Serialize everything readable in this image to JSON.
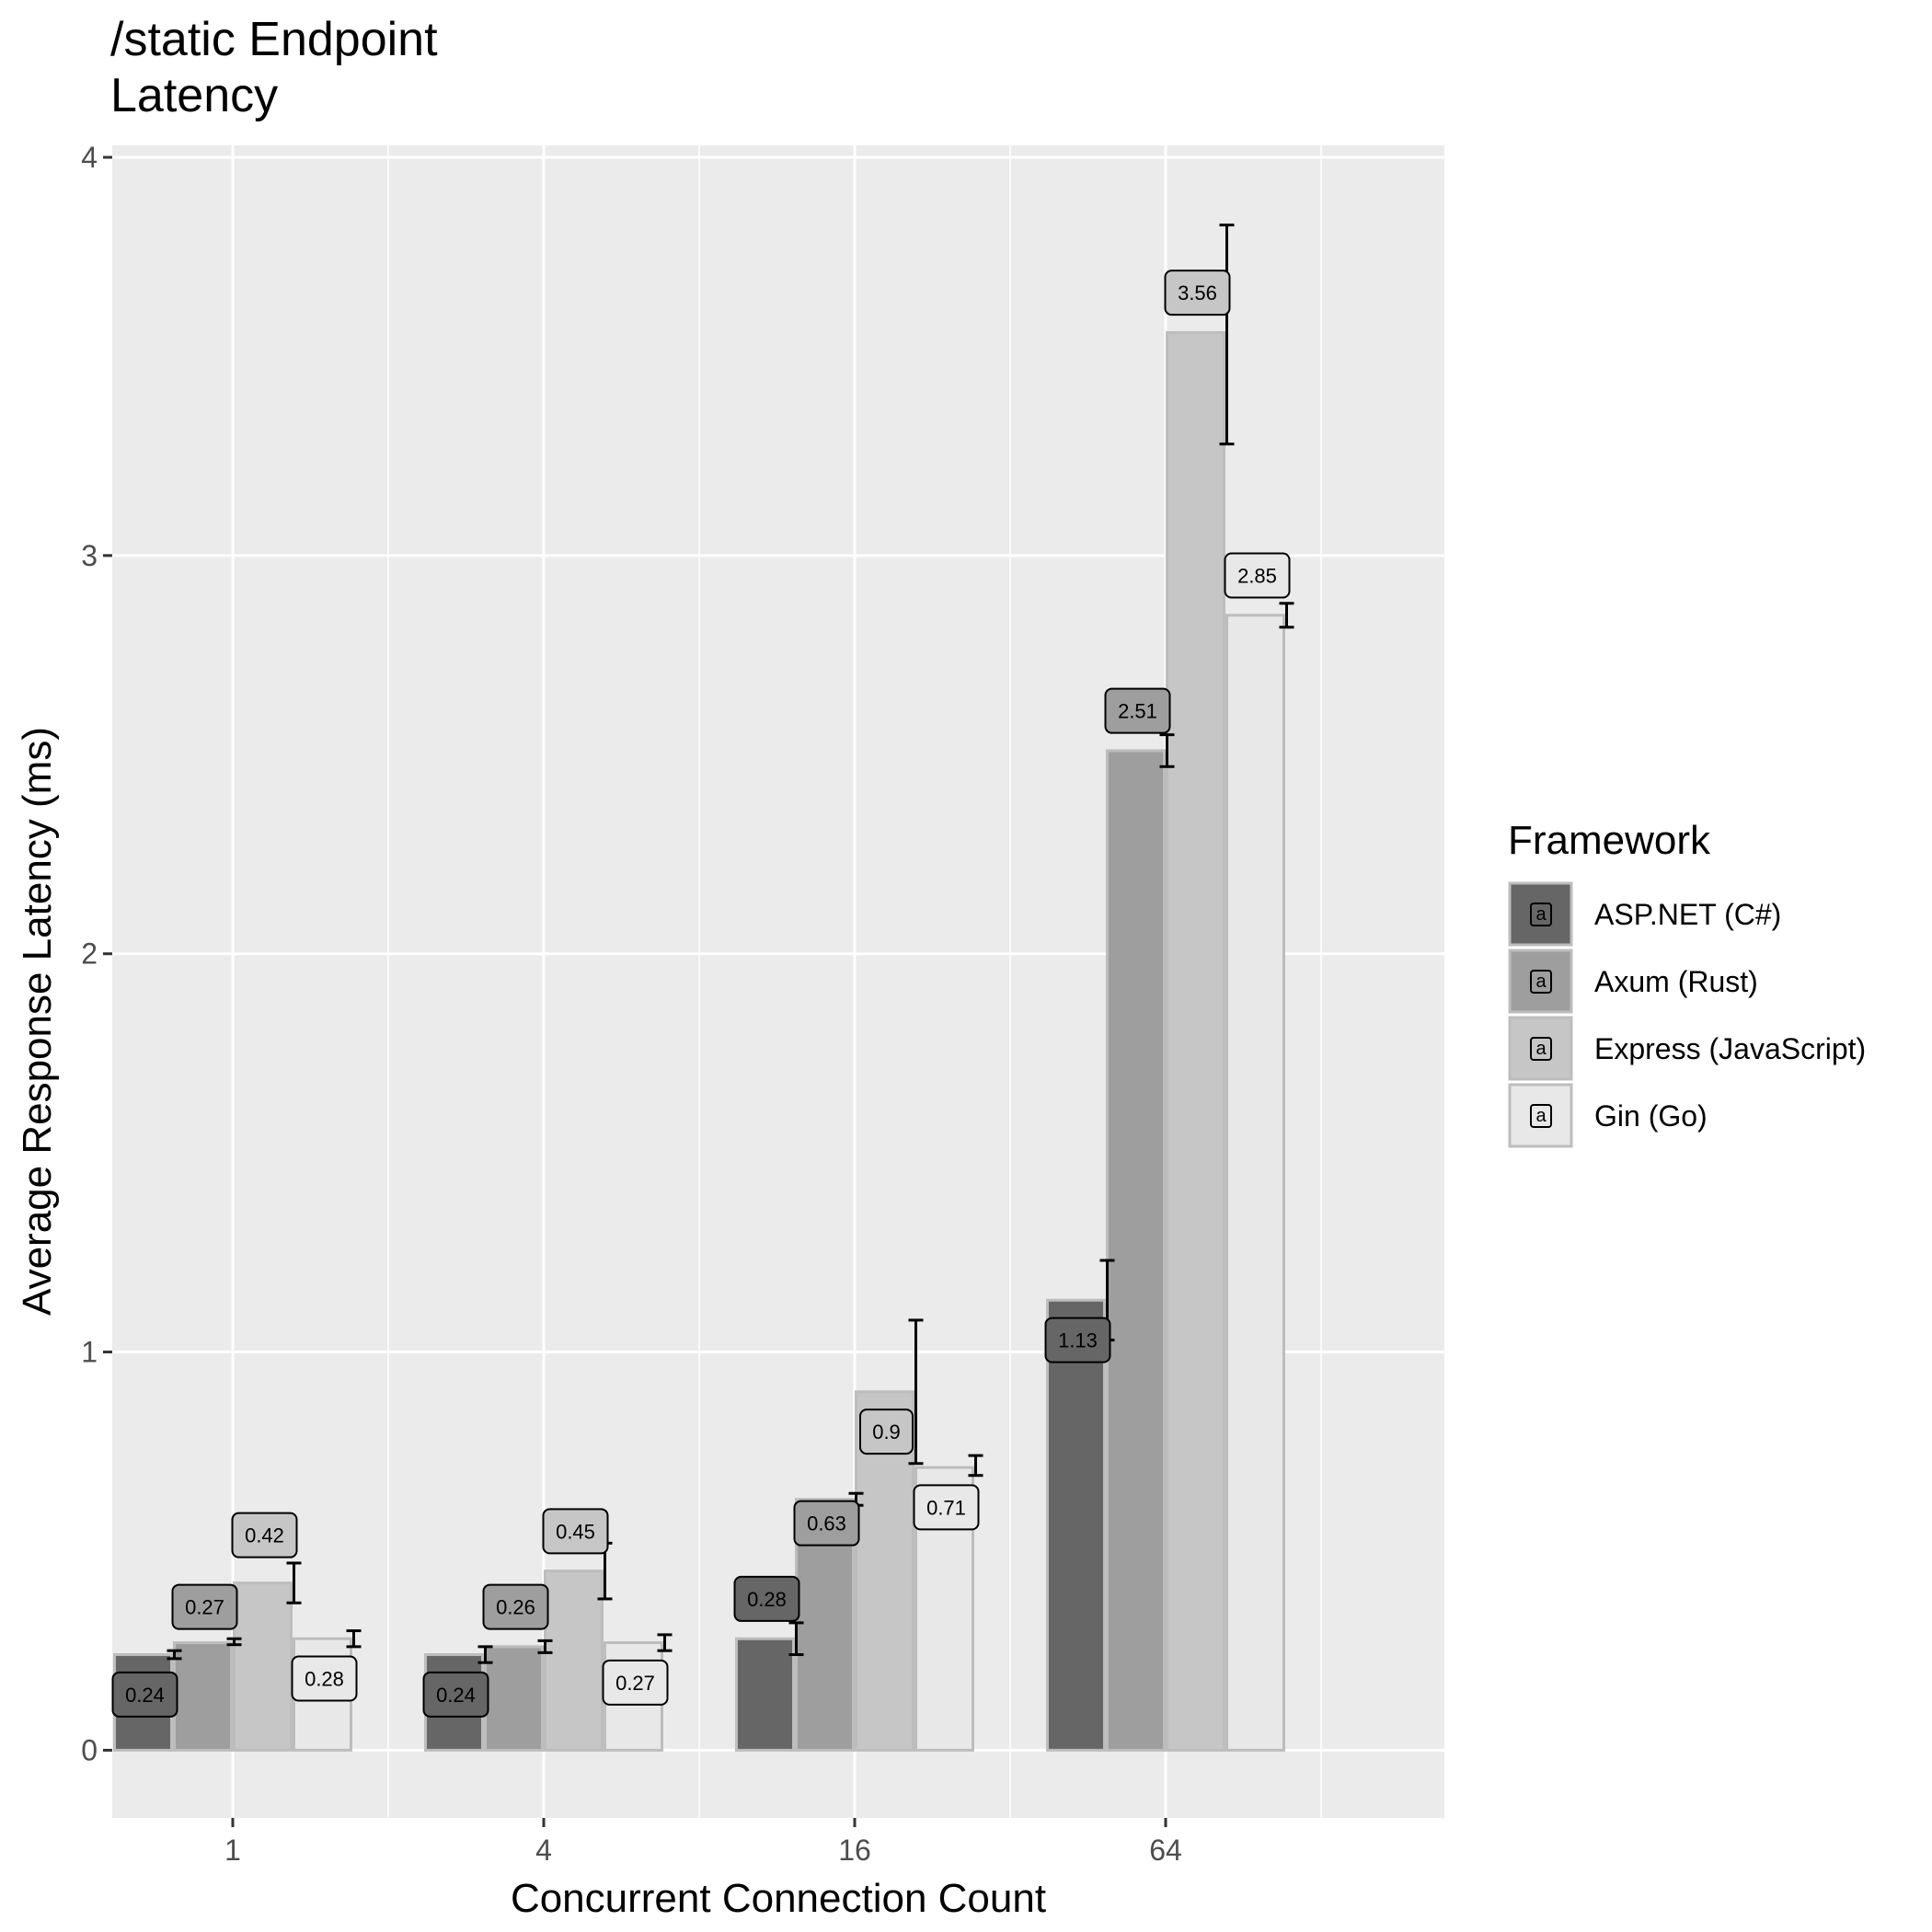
{
  "chart_data": {
    "type": "bar",
    "title_lines": [
      "/static Endpoint",
      "Latency"
    ],
    "xlabel": "Concurrent Connection Count",
    "ylabel": "Average Response Latency (ms)",
    "categories": [
      "1",
      "4",
      "16",
      "64"
    ],
    "ylim": [
      -0.17,
      4.03
    ],
    "yticks": [
      0,
      1,
      2,
      3,
      4
    ],
    "grid": true,
    "legend": {
      "title": "Framework",
      "position": "right",
      "key_glyph": "a"
    },
    "series": [
      {
        "name": "ASP.NET (C#)",
        "color": "#666666",
        "values": [
          0.24,
          0.24,
          0.28,
          1.13
        ],
        "err_low": [
          0.23,
          0.22,
          0.24,
          1.03
        ],
        "err_high": [
          0.25,
          0.26,
          0.32,
          1.23
        ],
        "labels": [
          "0.24",
          "0.24",
          "0.28",
          "1.13"
        ],
        "label_y": [
          0.14,
          0.14,
          0.38,
          1.03
        ]
      },
      {
        "name": "Axum (Rust)",
        "color": "#9e9e9e",
        "values": [
          0.27,
          0.26,
          0.63,
          2.51
        ],
        "err_low": [
          0.265,
          0.245,
          0.615,
          2.47
        ],
        "err_high": [
          0.28,
          0.275,
          0.645,
          2.55
        ],
        "labels": [
          "0.27",
          "0.26",
          "0.63",
          "2.51"
        ],
        "label_y": [
          0.36,
          0.36,
          0.57,
          2.61
        ]
      },
      {
        "name": "Express (JavaScript)",
        "color": "#c6c6c6",
        "values": [
          0.42,
          0.45,
          0.9,
          3.56
        ],
        "err_low": [
          0.37,
          0.38,
          0.72,
          3.28
        ],
        "err_high": [
          0.47,
          0.52,
          1.08,
          3.83
        ],
        "labels": [
          "0.42",
          "0.45",
          "0.9",
          "3.56"
        ],
        "label_y": [
          0.54,
          0.55,
          0.8,
          3.66
        ]
      },
      {
        "name": "Gin (Go)",
        "color": "#e8e8e8",
        "values": [
          0.28,
          0.27,
          0.71,
          2.85
        ],
        "err_low": [
          0.26,
          0.25,
          0.69,
          2.82
        ],
        "err_high": [
          0.3,
          0.29,
          0.74,
          2.88
        ],
        "labels": [
          "0.28",
          "0.27",
          "0.71",
          "2.85"
        ],
        "label_y": [
          0.18,
          0.17,
          0.61,
          2.95
        ]
      }
    ]
  }
}
